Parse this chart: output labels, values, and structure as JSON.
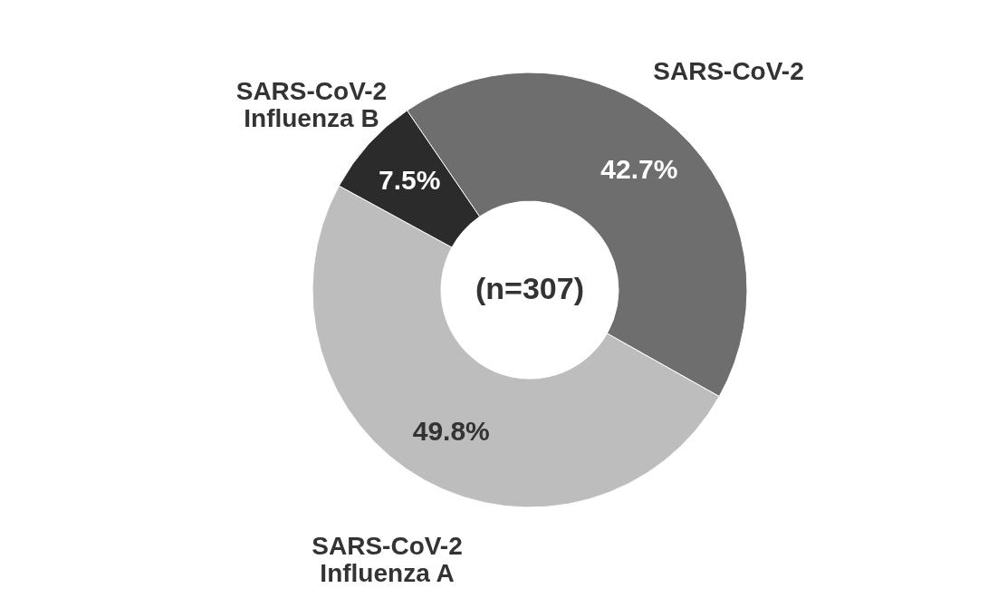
{
  "chart_data": {
    "type": "donut",
    "categories": [
      "SARS-CoV-2",
      "SARS-CoV-2\nInfluenza A",
      "SARS-CoV-2\nInfluenza B"
    ],
    "values": [
      42.7,
      49.8,
      7.5
    ],
    "value_labels": [
      "42.7%",
      "49.8%",
      "7.5%"
    ],
    "colors": [
      "#6e6e6e",
      "#bdbdbd",
      "#2b2b2b"
    ],
    "annotations": [
      "(n=307)"
    ]
  }
}
